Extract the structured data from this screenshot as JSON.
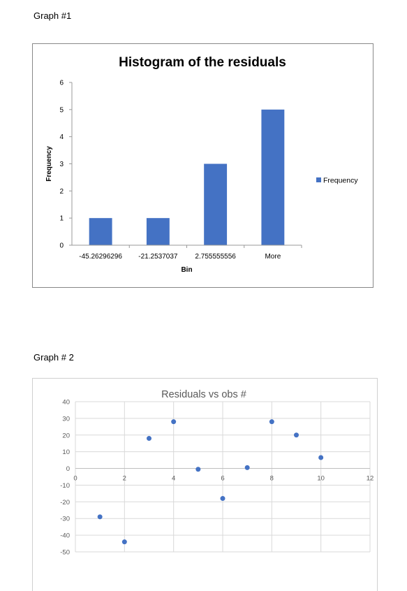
{
  "labels": {
    "graph1": "Graph #1",
    "graph2": "Graph # 2"
  },
  "chart_data": [
    {
      "type": "bar",
      "title": "Histogram of the residuals",
      "xlabel": "Bin",
      "ylabel": "Frequency",
      "categories": [
        "-45.26296296",
        "-21.2537037",
        "2.755555556",
        "More"
      ],
      "series": [
        {
          "name": "Frequency",
          "values": [
            1,
            1,
            3,
            5
          ],
          "color": "#4472C4"
        }
      ],
      "ylim": [
        0,
        6
      ],
      "yticks": [
        0,
        1,
        2,
        3,
        4,
        5,
        6
      ],
      "grid": false,
      "legend": "right"
    },
    {
      "type": "scatter",
      "title": "Residuals vs obs #",
      "xlabel": "",
      "ylabel": "",
      "x": [
        1,
        2,
        3,
        4,
        5,
        6,
        7,
        8,
        9,
        10
      ],
      "y": [
        -29,
        -44,
        18,
        28,
        -0.5,
        -18,
        0.5,
        28,
        20,
        6.5
      ],
      "xlim": [
        0,
        12
      ],
      "ylim": [
        -50,
        40
      ],
      "xticks": [
        0,
        2,
        4,
        6,
        8,
        10,
        12
      ],
      "yticks": [
        40,
        30,
        20,
        10,
        0,
        -10,
        -20,
        -30,
        -40,
        -50
      ],
      "grid": true,
      "color": "#4472C4"
    }
  ]
}
